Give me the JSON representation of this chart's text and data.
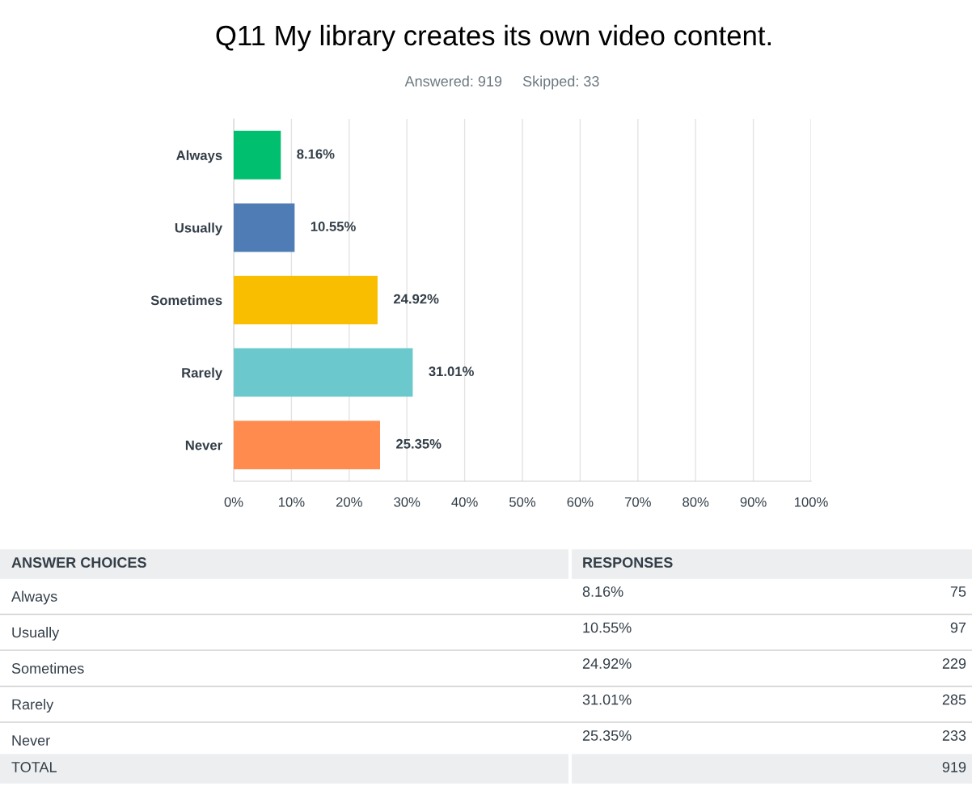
{
  "chart_data": {
    "type": "bar",
    "orientation": "horizontal",
    "title": "Q11 My library creates its own video content.",
    "subtitle": "Answered: 919     Skipped: 33",
    "categories": [
      "Always",
      "Usually",
      "Sometimes",
      "Rarely",
      "Never"
    ],
    "values": [
      8.16,
      10.55,
      24.92,
      31.01,
      25.35
    ],
    "colors": [
      "#00bf6f",
      "#507cb6",
      "#f9be00",
      "#6bc8cd",
      "#ff8b4f"
    ],
    "value_labels": [
      "8.16%",
      "10.55%",
      "24.92%",
      "31.01%",
      "25.35%"
    ],
    "xlim": [
      0,
      100
    ],
    "xticks": [
      {
        "value": 0,
        "label": "0%"
      },
      {
        "value": 10,
        "label": "10%"
      },
      {
        "value": 20,
        "label": "20%"
      },
      {
        "value": 30,
        "label": "30%"
      },
      {
        "value": 40,
        "label": "40%"
      },
      {
        "value": 50,
        "label": "50%"
      },
      {
        "value": 60,
        "label": "60%"
      },
      {
        "value": 70,
        "label": "70%"
      },
      {
        "value": 80,
        "label": "80%"
      },
      {
        "value": 90,
        "label": "90%"
      },
      {
        "value": 100,
        "label": "100%"
      }
    ],
    "grid": "x",
    "annotations": [
      "ANSWER CHOICES",
      "RESPONSES",
      "75",
      "97",
      "229",
      "285",
      "233",
      "TOTAL",
      "919"
    ]
  }
}
